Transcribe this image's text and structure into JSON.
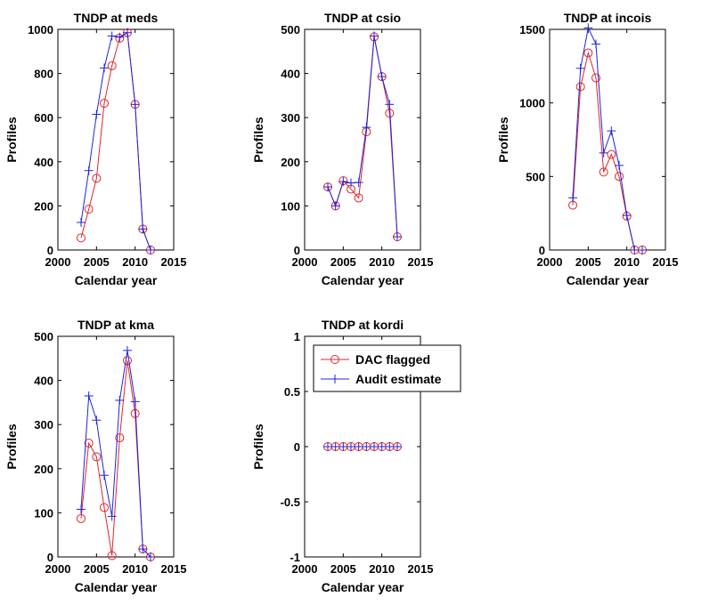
{
  "colors": {
    "dac": "#e0262b",
    "audit": "#1f25d8",
    "axes": "#000000"
  },
  "legend": {
    "entries": [
      "DAC flagged",
      "Audit estimate"
    ],
    "placement": "top-right"
  },
  "chart_data": [
    {
      "type": "line",
      "title": "TNDP at meds",
      "xlabel": "Calendar year",
      "ylabel": "Profiles",
      "xlim": [
        2000,
        2015
      ],
      "ylim": [
        0,
        1000
      ],
      "xticks": [
        2000,
        2005,
        2010,
        2015
      ],
      "yticks": [
        0,
        200,
        400,
        600,
        800,
        1000
      ],
      "x": [
        2003,
        2004,
        2005,
        2006,
        2007,
        2008,
        2009,
        2010,
        2011,
        2012
      ],
      "series": [
        {
          "name": "DAC flagged",
          "marker": "circle",
          "values": [
            55,
            185,
            325,
            665,
            835,
            960,
            985,
            660,
            95,
            0
          ]
        },
        {
          "name": "Audit estimate",
          "marker": "plus",
          "values": [
            125,
            360,
            615,
            825,
            970,
            965,
            985,
            660,
            95,
            0
          ]
        }
      ]
    },
    {
      "type": "line",
      "title": "TNDP at csio",
      "xlabel": "Calendar year",
      "ylabel": "Profiles",
      "xlim": [
        2000,
        2015
      ],
      "ylim": [
        0,
        500
      ],
      "xticks": [
        2000,
        2005,
        2010,
        2015
      ],
      "yticks": [
        0,
        100,
        200,
        300,
        400,
        500
      ],
      "x": [
        2003,
        2004,
        2005,
        2006,
        2007,
        2008,
        2009,
        2010,
        2011,
        2012
      ],
      "series": [
        {
          "name": "DAC flagged",
          "marker": "circle",
          "values": [
            143,
            100,
            157,
            138,
            118,
            268,
            483,
            393,
            310,
            30
          ]
        },
        {
          "name": "Audit estimate",
          "marker": "plus",
          "values": [
            143,
            100,
            155,
            152,
            153,
            278,
            485,
            393,
            330,
            30
          ]
        }
      ]
    },
    {
      "type": "line",
      "title": "TNDP at incois",
      "xlabel": "Calendar year",
      "ylabel": "Profiles",
      "xlim": [
        2000,
        2015
      ],
      "ylim": [
        0,
        1500
      ],
      "xticks": [
        2000,
        2005,
        2010,
        2015
      ],
      "yticks": [
        0,
        500,
        1000,
        1500
      ],
      "x": [
        2003,
        2004,
        2005,
        2006,
        2007,
        2008,
        2009,
        2010,
        2011,
        2012
      ],
      "series": [
        {
          "name": "DAC flagged",
          "marker": "circle",
          "values": [
            305,
            1110,
            1340,
            1170,
            530,
            650,
            500,
            230,
            0,
            0
          ]
        },
        {
          "name": "Audit estimate",
          "marker": "plus",
          "values": [
            355,
            1235,
            1510,
            1400,
            660,
            810,
            575,
            235,
            0,
            0
          ]
        }
      ]
    },
    {
      "type": "line",
      "title": "TNDP at kma",
      "xlabel": "Calendar year",
      "ylabel": "Profiles",
      "xlim": [
        2000,
        2015
      ],
      "ylim": [
        0,
        500
      ],
      "xticks": [
        2000,
        2005,
        2010,
        2015
      ],
      "yticks": [
        0,
        100,
        200,
        300,
        400,
        500
      ],
      "x": [
        2003,
        2004,
        2005,
        2006,
        2007,
        2008,
        2009,
        2010,
        2011,
        2012
      ],
      "series": [
        {
          "name": "DAC flagged",
          "marker": "circle",
          "values": [
            87,
            258,
            227,
            112,
            3,
            270,
            445,
            325,
            18,
            0
          ]
        },
        {
          "name": "Audit estimate",
          "marker": "plus",
          "values": [
            108,
            365,
            310,
            185,
            92,
            355,
            468,
            352,
            18,
            0
          ]
        }
      ]
    },
    {
      "type": "line",
      "title": "TNDP at kordi",
      "xlabel": "Calendar year",
      "ylabel": "Profiles",
      "xlim": [
        2000,
        2015
      ],
      "ylim": [
        -1,
        1
      ],
      "xticks": [
        2000,
        2005,
        2010,
        2015
      ],
      "yticks": [
        -1,
        -0.5,
        0,
        0.5,
        1
      ],
      "x": [
        2003,
        2004,
        2005,
        2006,
        2007,
        2008,
        2009,
        2010,
        2011,
        2012
      ],
      "legend": true,
      "series": [
        {
          "name": "DAC flagged",
          "marker": "circle",
          "values": [
            0,
            0,
            0,
            0,
            0,
            0,
            0,
            0,
            0,
            0
          ]
        },
        {
          "name": "Audit estimate",
          "marker": "plus",
          "values": [
            0,
            0,
            0,
            0,
            0,
            0,
            0,
            0,
            0,
            0
          ]
        }
      ]
    }
  ]
}
